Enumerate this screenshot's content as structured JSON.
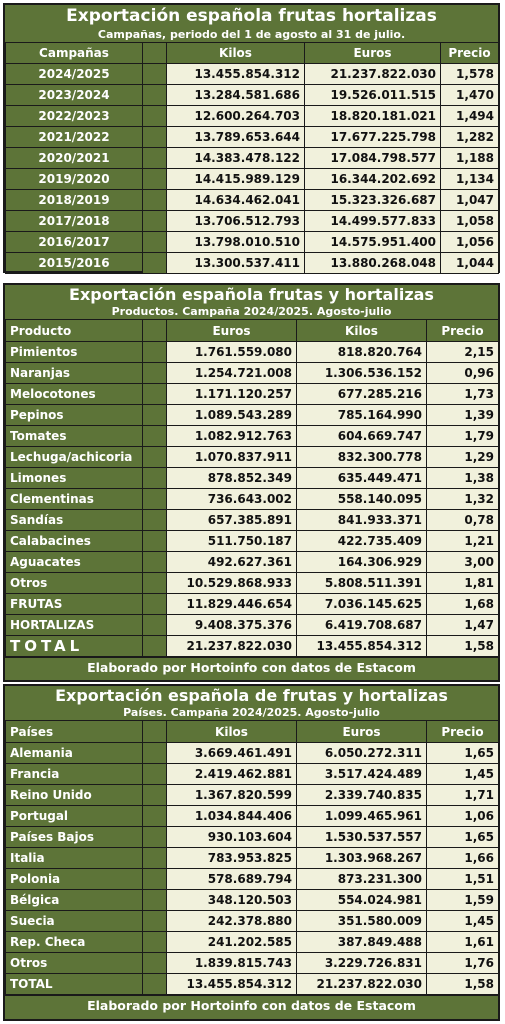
{
  "campaigns": {
    "title": "Exportación española frutas hortalizas",
    "subtitle": "Campañas, periodo del 1 de agosto al 31 de julio.",
    "headers": [
      "Campañas",
      "Kilos",
      "Euros",
      "Precio"
    ],
    "rows": [
      [
        "2024/2025",
        "13.455.854.312",
        "21.237.822.030",
        "1,578"
      ],
      [
        "2023/2024",
        "13.284.581.686",
        "19.526.011.515",
        "1,470"
      ],
      [
        "2022/2023",
        "12.600.264.703",
        "18.820.181.021",
        "1,494"
      ],
      [
        "2021/2022",
        "13.789.653.644",
        "17.677.225.798",
        "1,282"
      ],
      [
        "2020/2021",
        "14.383.478.122",
        "17.084.798.577",
        "1,188"
      ],
      [
        "2019/2020",
        "14.415.989.129",
        "16.344.202.692",
        "1,134"
      ],
      [
        "2018/2019",
        "14.634.462.041",
        "15.323.326.687",
        "1,047"
      ],
      [
        "2017/2018",
        "13.706.512.793",
        "14.499.577.833",
        "1,058"
      ],
      [
        "2016/2017",
        "13.798.010.510",
        "14.575.951.400",
        "1,056"
      ],
      [
        "2015/2016",
        "13.300.537.411",
        "13.880.268.048",
        "1,044"
      ]
    ]
  },
  "products": {
    "title": "Exportación española frutas y hortalizas",
    "subtitle": "Productos. Campaña 2024/2025. Agosto-julio",
    "headers": [
      "Producto",
      "Euros",
      "Kilos",
      "Precio"
    ],
    "rows": [
      [
        "Pimientos",
        "1.761.559.080",
        "818.820.764",
        "2,15"
      ],
      [
        "Naranjas",
        "1.254.721.008",
        "1.306.536.152",
        "0,96"
      ],
      [
        "Melocotones",
        "1.171.120.257",
        "677.285.216",
        "1,73"
      ],
      [
        "Pepinos",
        "1.089.543.289",
        "785.164.990",
        "1,39"
      ],
      [
        "Tomates",
        "1.082.912.763",
        "604.669.747",
        "1,79"
      ],
      [
        "Lechuga/achicoria",
        "1.070.837.911",
        "832.300.778",
        "1,29"
      ],
      [
        "Limones",
        "878.852.349",
        "635.449.471",
        "1,38"
      ],
      [
        "Clementinas",
        "736.643.002",
        "558.140.095",
        "1,32"
      ],
      [
        "Sandías",
        "657.385.891",
        "841.933.371",
        "0,78"
      ],
      [
        "Calabacines",
        "511.750.187",
        "422.735.409",
        "1,21"
      ],
      [
        "Aguacates",
        "492.627.361",
        "164.306.929",
        "3,00"
      ],
      [
        "Otros",
        "10.529.868.933",
        "5.808.511.391",
        "1,81"
      ],
      [
        "FRUTAS",
        "11.829.446.654",
        "7.036.145.625",
        "1,68"
      ],
      [
        "HORTALIZAS",
        "9.408.375.376",
        "6.419.708.687",
        "1,47"
      ],
      [
        "TOTAL",
        "21.237.822.030",
        "13.455.854.312",
        "1,58"
      ]
    ],
    "footer": "Elaborado por Hortoinfo con datos de Estacom"
  },
  "countries": {
    "title": "Exportación española de frutas y hortalizas",
    "subtitle": "Países. Campaña 2024/2025. Agosto-julio",
    "headers": [
      "Países",
      "Kilos",
      "Euros",
      "Precio"
    ],
    "rows": [
      [
        "Alemania",
        "3.669.461.491",
        "6.050.272.311",
        "1,65"
      ],
      [
        "Francia",
        "2.419.462.881",
        "3.517.424.489",
        "1,45"
      ],
      [
        "Reino Unido",
        "1.367.820.599",
        "2.339.740.835",
        "1,71"
      ],
      [
        "Portugal",
        "1.034.844.406",
        "1.099.465.961",
        "1,06"
      ],
      [
        "Países Bajos",
        "930.103.604",
        "1.530.537.557",
        "1,65"
      ],
      [
        "Italia",
        "783.953.825",
        "1.303.968.267",
        "1,66"
      ],
      [
        "Polonia",
        "578.689.794",
        "873.231.300",
        "1,51"
      ],
      [
        "Bélgica",
        "348.120.503",
        "554.024.981",
        "1,59"
      ],
      [
        "Suecia",
        "242.378.880",
        "351.580.009",
        "1,45"
      ],
      [
        "Rep. Checa",
        "241.202.585",
        "387.849.488",
        "1,61"
      ],
      [
        "Otros",
        "1.839.815.743",
        "3.229.726.831",
        "1,76"
      ],
      [
        "TOTAL",
        "13.455.854.312",
        "21.237.822.030",
        "1,58"
      ]
    ],
    "footer": "Elaborado por Hortoinfo con datos de Estacom"
  }
}
